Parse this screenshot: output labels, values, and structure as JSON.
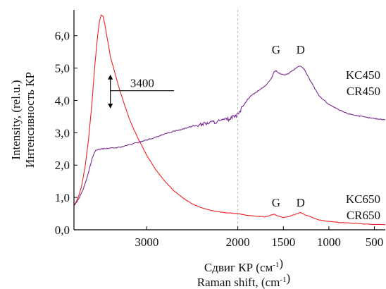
{
  "chart_data": {
    "type": "line",
    "x_direction": "descending",
    "xlim": [
      3800,
      380
    ],
    "ylim": [
      0,
      6.8
    ],
    "grid": false,
    "vertical_marker_x": 2000,
    "xticks": [
      {
        "value": 3000,
        "label": "3000"
      },
      {
        "value": 2000,
        "label": "2000"
      },
      {
        "value": 1500,
        "label": "1500"
      },
      {
        "value": 1000,
        "label": "1000"
      },
      {
        "value": 500,
        "label": "500"
      }
    ],
    "yticks": [
      {
        "value": 0,
        "label": "0,0"
      },
      {
        "value": 1,
        "label": "1,0"
      },
      {
        "value": 2,
        "label": "2,0"
      },
      {
        "value": 3,
        "label": "3,0"
      },
      {
        "value": 4,
        "label": "4,0"
      },
      {
        "value": 5,
        "label": "5,0"
      },
      {
        "value": 6,
        "label": "6,0"
      }
    ],
    "xlabel_lines": [
      "Сдвиг КР (см-1)",
      "Raman shift, (cm-1)"
    ],
    "ylabel_lines": [
      "Intensity, (rel.u.)",
      "Интенсивность КР"
    ],
    "series": [
      {
        "label_lines": [
          "KC650",
          "CR650"
        ],
        "color": "#ee2222",
        "x": [
          3800,
          3760,
          3720,
          3680,
          3640,
          3600,
          3570,
          3540,
          3520,
          3500,
          3480,
          3460,
          3440,
          3420,
          3400,
          3350,
          3300,
          3250,
          3200,
          3150,
          3100,
          3000,
          2900,
          2800,
          2700,
          2600,
          2500,
          2400,
          2300,
          2200,
          2100,
          2000,
          1900,
          1800,
          1700,
          1650,
          1600,
          1550,
          1500,
          1450,
          1400,
          1350,
          1320,
          1300,
          1250,
          1200,
          1150,
          1100,
          1000,
          900,
          800,
          700,
          600,
          500,
          400,
          380
        ],
        "y": [
          0.75,
          0.95,
          1.3,
          1.9,
          2.8,
          4.0,
          5.1,
          6.0,
          6.45,
          6.65,
          6.6,
          6.35,
          6.0,
          5.7,
          5.35,
          4.85,
          4.35,
          3.9,
          3.5,
          3.15,
          2.85,
          2.3,
          1.85,
          1.5,
          1.2,
          0.98,
          0.8,
          0.68,
          0.6,
          0.55,
          0.52,
          0.5,
          0.45,
          0.42,
          0.4,
          0.44,
          0.48,
          0.42,
          0.38,
          0.4,
          0.45,
          0.5,
          0.53,
          0.52,
          0.45,
          0.4,
          0.35,
          0.3,
          0.26,
          0.23,
          0.21,
          0.2,
          0.18,
          0.17,
          0.16,
          0.16
        ]
      },
      {
        "label_lines": [
          "KC450",
          "CR450"
        ],
        "color": "#7a2a8f",
        "x": [
          3800,
          3780,
          3760,
          3740,
          3720,
          3700,
          3680,
          3660,
          3640,
          3620,
          3600,
          3580,
          3560,
          3540,
          3500,
          3400,
          3300,
          3200,
          3100,
          3000,
          2900,
          2800,
          2700,
          2600,
          2500,
          2400,
          2300,
          2200,
          2100,
          2000,
          1950,
          1900,
          1850,
          1800,
          1750,
          1700,
          1650,
          1620,
          1600,
          1580,
          1550,
          1500,
          1450,
          1400,
          1350,
          1320,
          1300,
          1270,
          1250,
          1200,
          1150,
          1100,
          1000,
          900,
          800,
          700,
          600,
          500,
          400,
          380
        ],
        "y": [
          0.75,
          0.82,
          0.9,
          1.0,
          1.12,
          1.25,
          1.4,
          1.58,
          1.78,
          2.0,
          2.2,
          2.35,
          2.45,
          2.48,
          2.5,
          2.52,
          2.55,
          2.62,
          2.7,
          2.78,
          2.86,
          2.96,
          3.05,
          3.12,
          3.2,
          3.26,
          3.32,
          3.36,
          3.42,
          3.55,
          3.8,
          4.0,
          4.15,
          4.25,
          4.35,
          4.45,
          4.6,
          4.75,
          4.88,
          4.92,
          4.85,
          4.78,
          4.82,
          4.92,
          5.02,
          5.07,
          5.05,
          4.95,
          4.85,
          4.6,
          4.35,
          4.12,
          3.88,
          3.72,
          3.6,
          3.54,
          3.48,
          3.44,
          3.41,
          3.4
        ]
      }
    ],
    "annotations": [
      {
        "text": "G",
        "x": 1580,
        "y": 5.45
      },
      {
        "text": "D",
        "x": 1310,
        "y": 5.45
      },
      {
        "text": "G",
        "x": 1580,
        "y": 0.72
      },
      {
        "text": "D",
        "x": 1310,
        "y": 0.72
      },
      {
        "text": "3400",
        "arrow_x": 3400,
        "arrow_y_top": 4.8,
        "arrow_y_bottom": 3.75,
        "leader_to_x": 2700,
        "leader_y": 4.3
      }
    ]
  }
}
